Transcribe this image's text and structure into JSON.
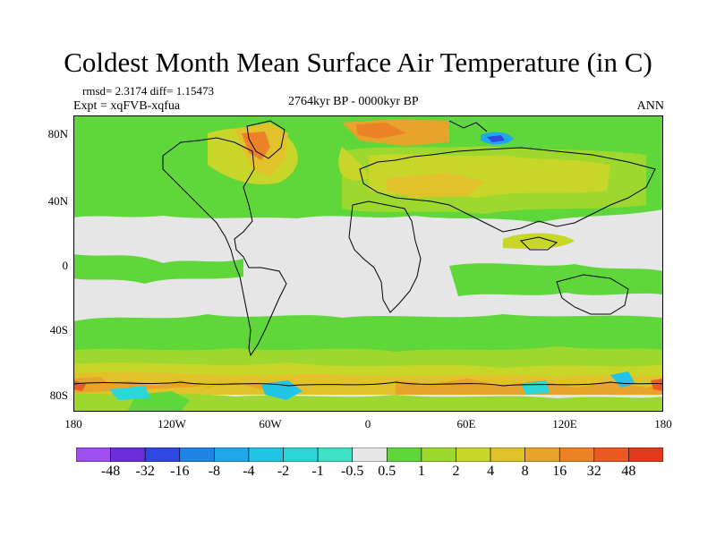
{
  "title": "Coldest Month Mean Surface Air Temperature (in C)",
  "stats": {
    "rmsd_text": "rmsd= 2.3174 diff= 1.15473"
  },
  "experiment": "Expt = xqFVB-xqfua",
  "period": "2764kyr BP - 0000kyr BP",
  "season": "ANN",
  "lat_labels": [
    "80N",
    "40N",
    "0",
    "40S",
    "80S"
  ],
  "lon_labels": [
    "180",
    "120W",
    "60W",
    "0",
    "60E",
    "120E",
    "180"
  ],
  "colorbar": {
    "labels": [
      "-48",
      "-32",
      "-16",
      "-8",
      "-4",
      "-2",
      "-1",
      "-0.5",
      "0.5",
      "1",
      "2",
      "4",
      "8",
      "16",
      "32",
      "48"
    ],
    "colors": [
      "#9d4ff0",
      "#6a2fd8",
      "#2f48e0",
      "#1e84e6",
      "#1fa8ea",
      "#22c4e6",
      "#2ad6d8",
      "#3ee0c6",
      "#e6e6e6",
      "#5fd63a",
      "#9ed82e",
      "#c8d62a",
      "#e2c22a",
      "#e8a42a",
      "#ec8228",
      "#ea5a22",
      "#e43a1c"
    ]
  },
  "palette": {
    "ocean_neutral": "#e6e6e6",
    "green": "#5fd63a",
    "yellowgreen": "#9ed82e",
    "yellow": "#c8d62a",
    "gold": "#e2c22a",
    "orange": "#e8a42a",
    "darkorange": "#ec8228",
    "red": "#ea5a22",
    "cyan": "#22c4e6",
    "blue": "#1e84e6",
    "coast": "#000000"
  }
}
